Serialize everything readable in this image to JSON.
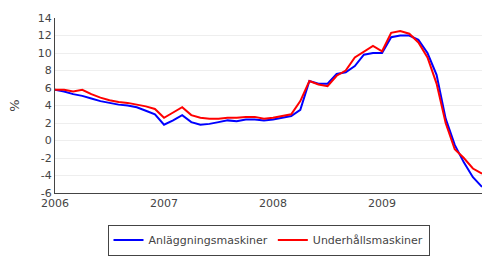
{
  "chart_data": {
    "type": "line",
    "ylabel": "%",
    "categories": [
      "2006",
      null,
      null,
      null,
      null,
      null,
      null,
      null,
      null,
      null,
      null,
      null,
      "2007",
      null,
      null,
      null,
      null,
      null,
      null,
      null,
      null,
      null,
      null,
      null,
      "2008",
      null,
      null,
      null,
      null,
      null,
      null,
      null,
      null,
      null,
      null,
      null,
      "2009",
      null,
      null,
      null,
      null,
      null,
      null,
      null,
      null,
      null,
      null,
      null
    ],
    "series": [
      {
        "name": "Anläggningsmaskiner",
        "color": "#0000FF",
        "values": [
          5.8,
          5.6,
          5.3,
          5.1,
          4.8,
          4.5,
          4.3,
          4.1,
          4.0,
          3.8,
          3.4,
          3.0,
          1.8,
          2.3,
          2.9,
          2.1,
          1.8,
          1.9,
          2.1,
          2.3,
          2.2,
          2.4,
          2.4,
          2.3,
          2.4,
          2.6,
          2.8,
          3.5,
          6.8,
          6.5,
          6.5,
          7.6,
          7.8,
          8.5,
          9.8,
          10.0,
          10.0,
          11.8,
          12.0,
          12.0,
          11.5,
          10.0,
          7.5,
          2.5,
          -0.5,
          -2.5,
          -4.2,
          -5.3
        ]
      },
      {
        "name": "Underhållsmaskiner",
        "color": "#FF0000",
        "values": [
          5.8,
          5.8,
          5.6,
          5.8,
          5.3,
          4.9,
          4.6,
          4.4,
          4.3,
          4.1,
          3.9,
          3.6,
          2.6,
          3.2,
          3.8,
          2.9,
          2.6,
          2.5,
          2.5,
          2.6,
          2.6,
          2.7,
          2.7,
          2.5,
          2.6,
          2.8,
          3.0,
          4.5,
          6.8,
          6.4,
          6.2,
          7.4,
          8.0,
          9.5,
          10.2,
          10.8,
          10.2,
          12.3,
          12.5,
          12.2,
          11.2,
          9.5,
          6.5,
          2.0,
          -1.0,
          -2.0,
          -3.2,
          -3.8
        ]
      }
    ],
    "ylim": [
      -6,
      14
    ],
    "yticks": [
      -6,
      -4,
      -2,
      0,
      2,
      4,
      6,
      8,
      10,
      12,
      14
    ],
    "grid": true,
    "legend": "bottom"
  }
}
